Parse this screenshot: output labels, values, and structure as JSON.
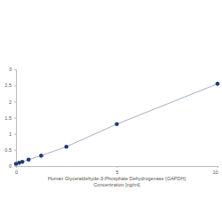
{
  "chart_data": {
    "type": "line",
    "x_label": "Human Glyceraldehyde-3-Phosphate Dehydrogenase (GAPDH)",
    "x_label_2": "Concentration [ng/ml]",
    "x": [
      0,
      0.156,
      0.312,
      0.625,
      1.25,
      2.5,
      5,
      10
    ],
    "values": [
      0.07,
      0.1,
      0.13,
      0.2,
      0.32,
      0.6,
      1.3,
      2.55
    ],
    "color": "#1f3d7a",
    "marker": "circle",
    "xlim": [
      0,
      10
    ],
    "xticks": [
      0,
      5,
      10
    ],
    "ylim": [
      0,
      3
    ],
    "yticks": [
      0,
      0.5,
      1,
      1.5,
      2,
      2.5,
      3
    ],
    "grid": false
  }
}
